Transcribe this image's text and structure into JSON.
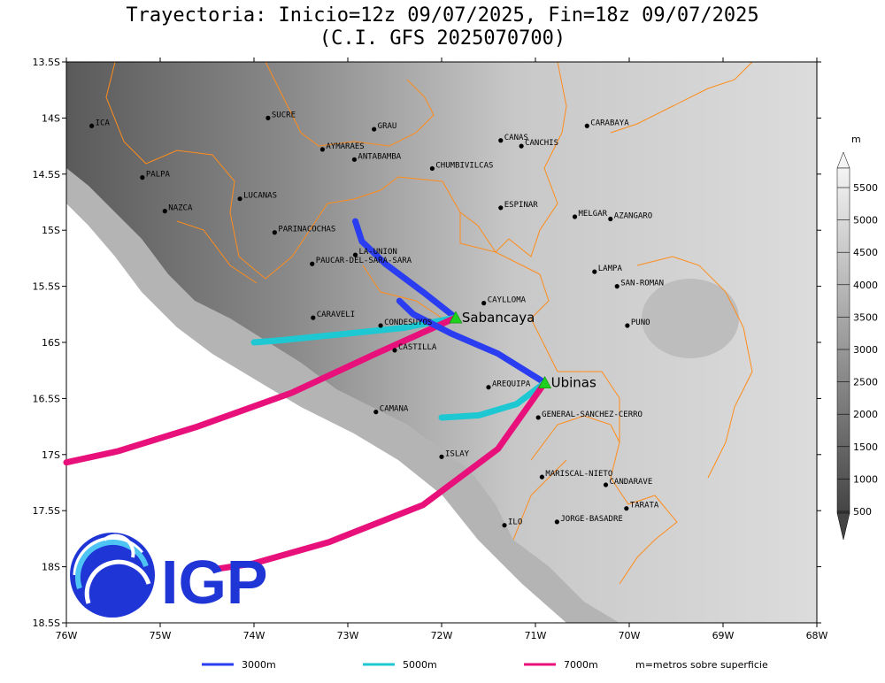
{
  "title": {
    "line1": "Trayectoria: Inicio=12z 09/07/2025, Fin=18z 09/07/2025",
    "line2": "(C.I. GFS 2025070700)"
  },
  "map": {
    "lon_range": [
      -76,
      -68
    ],
    "lat_range": [
      -18.5,
      -13.5
    ],
    "x_ticks": [
      {
        "lon": -76,
        "label": "76W"
      },
      {
        "lon": -75,
        "label": "75W"
      },
      {
        "lon": -74,
        "label": "74W"
      },
      {
        "lon": -73,
        "label": "73W"
      },
      {
        "lon": -72,
        "label": "72W"
      },
      {
        "lon": -71,
        "label": "71W"
      },
      {
        "lon": -70,
        "label": "70W"
      },
      {
        "lon": -69,
        "label": "69W"
      },
      {
        "lon": -68,
        "label": "68W"
      }
    ],
    "y_ticks": [
      {
        "lat": -13.5,
        "label": "13.5S"
      },
      {
        "lat": -14,
        "label": "14S"
      },
      {
        "lat": -14.5,
        "label": "14.5S"
      },
      {
        "lat": -15,
        "label": "15S"
      },
      {
        "lat": -15.5,
        "label": "15.5S"
      },
      {
        "lat": -16,
        "label": "16S"
      },
      {
        "lat": -16.5,
        "label": "16.5S"
      },
      {
        "lat": -17,
        "label": "17S"
      },
      {
        "lat": -17.5,
        "label": "17.5S"
      },
      {
        "lat": -18,
        "label": "18S"
      },
      {
        "lat": -18.5,
        "label": "18.5S"
      }
    ],
    "provinces": [
      {
        "name": "ICA",
        "lon": -75.73,
        "lat": -14.07
      },
      {
        "name": "SUCRE",
        "lon": -73.85,
        "lat": -14.0
      },
      {
        "name": "GRAU",
        "lon": -72.72,
        "lat": -14.1
      },
      {
        "name": "CANAS",
        "lon": -71.37,
        "lat": -14.2
      },
      {
        "name": "CANCHIS",
        "lon": -71.15,
        "lat": -14.25
      },
      {
        "name": "CARABAYA",
        "lon": -70.45,
        "lat": -14.07
      },
      {
        "name": "AYMARAES",
        "lon": -73.27,
        "lat": -14.28
      },
      {
        "name": "ANTABAMBA",
        "lon": -72.93,
        "lat": -14.37
      },
      {
        "name": "CHUMBIVILCAS",
        "lon": -72.1,
        "lat": -14.45
      },
      {
        "name": "PALPA",
        "lon": -75.19,
        "lat": -14.53
      },
      {
        "name": "LUCANAS",
        "lon": -74.15,
        "lat": -14.72
      },
      {
        "name": "NAZCA",
        "lon": -74.95,
        "lat": -14.83
      },
      {
        "name": "ESPINAR",
        "lon": -71.37,
        "lat": -14.8
      },
      {
        "name": "MELGAR",
        "lon": -70.58,
        "lat": -14.88
      },
      {
        "name": "AZANGARO",
        "lon": -70.2,
        "lat": -14.9
      },
      {
        "name": "PARINACOCHAS",
        "lon": -73.78,
        "lat": -15.02
      },
      {
        "name": "LA-UNION",
        "lon": -72.92,
        "lat": -15.22
      },
      {
        "name": "PAUCAR-DEL-SARA-SARA",
        "lon": -73.38,
        "lat": -15.3
      },
      {
        "name": "LAMPA",
        "lon": -70.37,
        "lat": -15.37
      },
      {
        "name": "SAN-ROMAN",
        "lon": -70.13,
        "lat": -15.5
      },
      {
        "name": "CAYLLOMA",
        "lon": -71.55,
        "lat": -15.65
      },
      {
        "name": "CARAVELI",
        "lon": -73.37,
        "lat": -15.78
      },
      {
        "name": "CONDESUYOS",
        "lon": -72.65,
        "lat": -15.85
      },
      {
        "name": "PUNO",
        "lon": -70.02,
        "lat": -15.85
      },
      {
        "name": "CASTILLA",
        "lon": -72.5,
        "lat": -16.07
      },
      {
        "name": "AREQUIPA",
        "lon": -71.5,
        "lat": -16.4
      },
      {
        "name": "CAMANA",
        "lon": -72.7,
        "lat": -16.62
      },
      {
        "name": "GENERAL-SANCHEZ-CERRO",
        "lon": -70.97,
        "lat": -16.67
      },
      {
        "name": "ISLAY",
        "lon": -72.0,
        "lat": -17.02
      },
      {
        "name": "MARISCAL-NIETO",
        "lon": -70.93,
        "lat": -17.2
      },
      {
        "name": "CANDARAVE",
        "lon": -70.25,
        "lat": -17.27
      },
      {
        "name": "TARATA",
        "lon": -70.03,
        "lat": -17.48
      },
      {
        "name": "ILO",
        "lon": -71.33,
        "lat": -17.63
      },
      {
        "name": "JORGE-BASADRE",
        "lon": -70.77,
        "lat": -17.6
      }
    ],
    "volcanoes": [
      {
        "name": "Sabancaya",
        "lon": -71.85,
        "lat": -15.78
      },
      {
        "name": "Ubinas",
        "lon": -70.9,
        "lat": -16.36
      }
    ],
    "trajectories": [
      {
        "level": "3000m",
        "color": "#2a3df0",
        "points": [
          [
            -71.85,
            -15.78
          ],
          [
            -72.2,
            -15.55
          ],
          [
            -72.6,
            -15.3
          ],
          [
            -72.85,
            -15.1
          ],
          [
            -72.92,
            -14.92
          ]
        ]
      },
      {
        "level": "5000m",
        "color": "#1ec8d2",
        "points": [
          [
            -71.85,
            -15.78
          ],
          [
            -72.4,
            -15.87
          ],
          [
            -73.1,
            -15.93
          ],
          [
            -73.7,
            -15.98
          ],
          [
            -74.0,
            -16.0
          ]
        ]
      },
      {
        "level": "7000m",
        "color": "#e8107a",
        "points": [
          [
            -71.85,
            -15.78
          ],
          [
            -72.7,
            -16.1
          ],
          [
            -73.6,
            -16.45
          ],
          [
            -74.6,
            -16.75
          ],
          [
            -75.45,
            -16.97
          ],
          [
            -76.0,
            -17.07
          ]
        ]
      },
      {
        "level": "3000m",
        "color": "#2a3df0",
        "points": [
          [
            -70.9,
            -16.36
          ],
          [
            -71.4,
            -16.1
          ],
          [
            -71.9,
            -15.92
          ],
          [
            -72.3,
            -15.75
          ],
          [
            -72.45,
            -15.63
          ]
        ]
      },
      {
        "level": "5000m",
        "color": "#1ec8d2",
        "points": [
          [
            -70.9,
            -16.36
          ],
          [
            -71.2,
            -16.55
          ],
          [
            -71.6,
            -16.65
          ],
          [
            -72.0,
            -16.67
          ]
        ]
      },
      {
        "level": "7000m",
        "color": "#e8107a",
        "points": [
          [
            -70.9,
            -16.36
          ],
          [
            -71.4,
            -16.95
          ],
          [
            -72.2,
            -17.45
          ],
          [
            -73.2,
            -17.78
          ],
          [
            -74.0,
            -17.97
          ],
          [
            -74.4,
            -18.02
          ]
        ]
      }
    ]
  },
  "colorbar": {
    "unit": "m",
    "labels": [
      "5500",
      "5000",
      "4500",
      "4000",
      "3500",
      "3000",
      "2500",
      "2000",
      "1500",
      "1000",
      "500"
    ]
  },
  "legend": {
    "items": [
      {
        "label": "3000m",
        "color": "#2a3df0"
      },
      {
        "label": "5000m",
        "color": "#1ec8d2"
      },
      {
        "label": "7000m",
        "color": "#e8107a"
      }
    ],
    "note": "m=metros sobre superficie"
  },
  "logo": {
    "text": "IGP"
  }
}
